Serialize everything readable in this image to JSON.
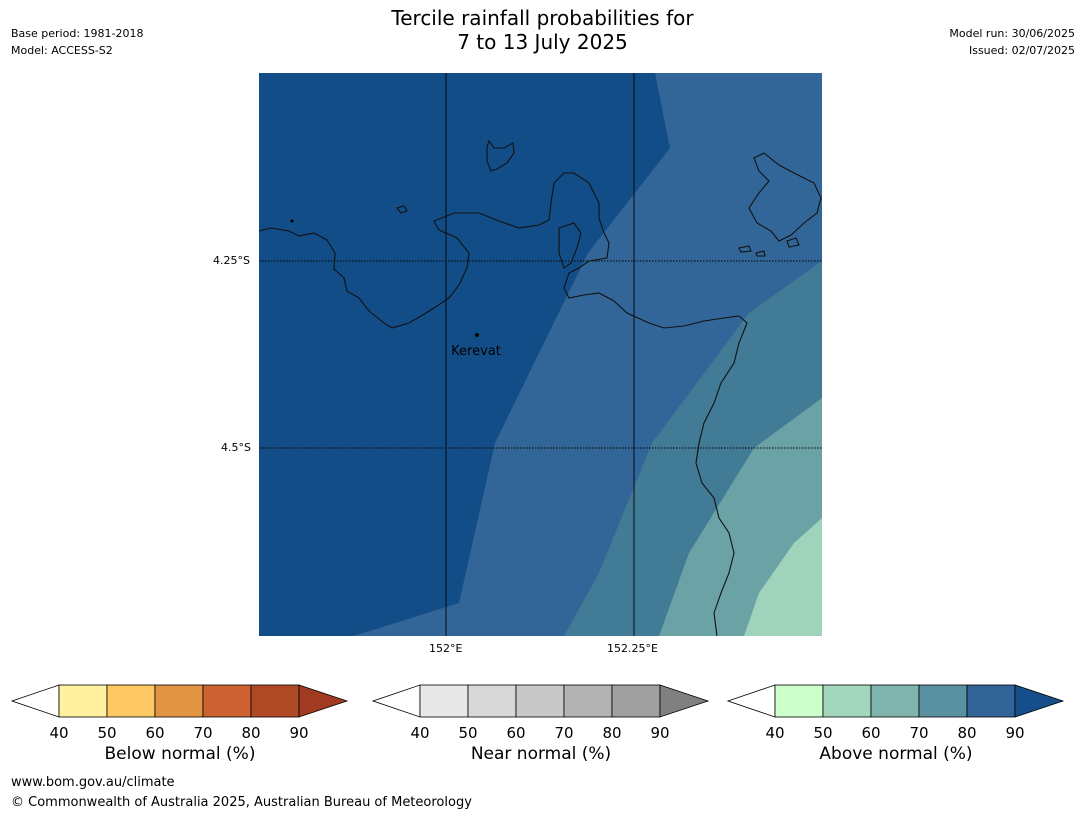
{
  "header": {
    "title_line1": "Tercile rainfall probabilities for",
    "title_line2": "7 to 13 July 2025",
    "base_period": "Base period: 1981-2018",
    "model": "Model: ACCESS-S2",
    "model_run": "Model run: 30/06/2025",
    "issued": "Issued: 02/07/2025"
  },
  "map": {
    "place_label": "Kerevat",
    "lat_ticks": [
      "4.25°S",
      "4.5°S"
    ],
    "lon_ticks": [
      "152°E",
      "152.25°E"
    ]
  },
  "colorbars": [
    {
      "label": "Below normal (%)",
      "ticks": [
        "40",
        "50",
        "60",
        "70",
        "80",
        "90"
      ],
      "colors": [
        "#fff0a0",
        "#fdc863",
        "#e29343",
        "#cd6332",
        "#b04a26"
      ],
      "extend_color": "#a03a20"
    },
    {
      "label": "Near normal (%)",
      "ticks": [
        "40",
        "50",
        "60",
        "70",
        "80",
        "90"
      ],
      "colors": [
        "#e8e8e8",
        "#d8d8d8",
        "#c8c8c8",
        "#b3b3b3",
        "#a0a0a0"
      ],
      "extend_color": "#808080"
    },
    {
      "label": "Above normal (%)",
      "ticks": [
        "40",
        "50",
        "60",
        "70",
        "80",
        "90"
      ],
      "colors": [
        "#ccffcc",
        "#a3d7bd",
        "#80b5ae",
        "#5a91a0",
        "#326396"
      ],
      "extend_color": "#154e8a"
    }
  ],
  "footer": {
    "url": "www.bom.gov.au/climate",
    "copyright": "© Commonwealth of Australia 2025, Australian Bureau of Meteorology"
  }
}
